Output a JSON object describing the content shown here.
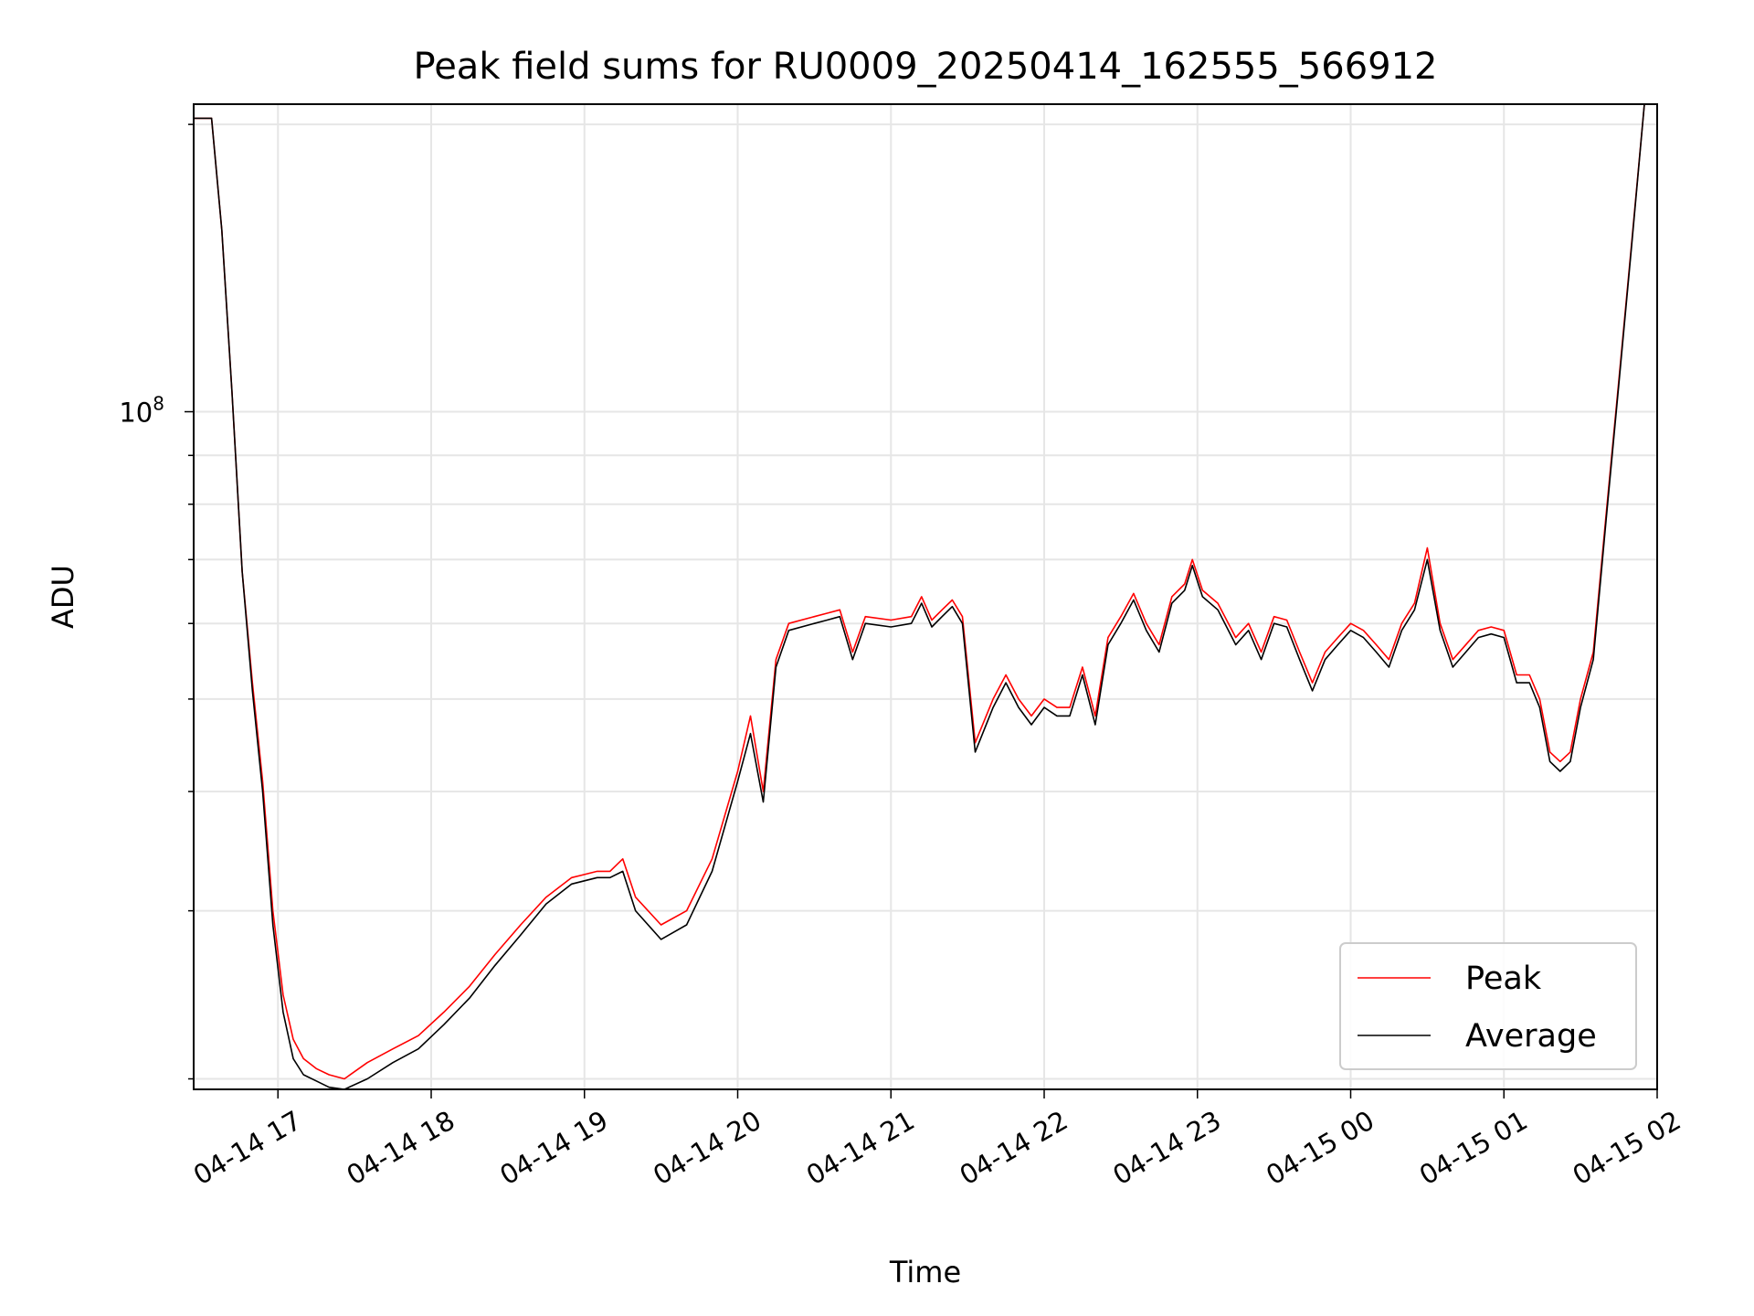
{
  "chart_data": {
    "type": "line",
    "title": "Peak field sums for RU0009_20250414_162555_566912",
    "xlabel": "Time",
    "ylabel": "ADU",
    "y_scale": "log",
    "ylim": [
      19500000,
      210000000
    ],
    "y_tick_label": "10^8",
    "y_tick_value": 100000000,
    "y_minor_ticks": [
      20000000,
      30000000,
      40000000,
      50000000,
      60000000,
      70000000,
      80000000,
      90000000,
      200000000
    ],
    "xlim": [
      "2025-04-14 16:27",
      "2025-04-15 02:00"
    ],
    "x_ticks": [
      {
        "t": "2025-04-14 17:00",
        "label": "04-14 17"
      },
      {
        "t": "2025-04-14 18:00",
        "label": "04-14 18"
      },
      {
        "t": "2025-04-14 19:00",
        "label": "04-14 19"
      },
      {
        "t": "2025-04-14 20:00",
        "label": "04-14 20"
      },
      {
        "t": "2025-04-14 21:00",
        "label": "04-14 21"
      },
      {
        "t": "2025-04-14 22:00",
        "label": "04-14 22"
      },
      {
        "t": "2025-04-14 23:00",
        "label": "04-14 23"
      },
      {
        "t": "2025-04-15 00:00",
        "label": "04-15 00"
      },
      {
        "t": "2025-04-15 01:00",
        "label": "04-15 01"
      },
      {
        "t": "2025-04-15 02:00",
        "label": "04-15 02"
      }
    ],
    "grid": true,
    "legend_position": "lower right",
    "series": [
      {
        "name": "Peak",
        "color": "#ff0000",
        "x": [
          "2025-04-14 16:27",
          "2025-04-14 16:34",
          "2025-04-14 16:38",
          "2025-04-14 16:42",
          "2025-04-14 16:46",
          "2025-04-14 16:50",
          "2025-04-14 16:54",
          "2025-04-14 16:58",
          "2025-04-14 17:02",
          "2025-04-14 17:06",
          "2025-04-14 17:10",
          "2025-04-14 17:15",
          "2025-04-14 17:20",
          "2025-04-14 17:26",
          "2025-04-14 17:35",
          "2025-04-14 17:45",
          "2025-04-14 17:55",
          "2025-04-14 18:05",
          "2025-04-14 18:15",
          "2025-04-14 18:25",
          "2025-04-14 18:35",
          "2025-04-14 18:45",
          "2025-04-14 18:55",
          "2025-04-14 19:05",
          "2025-04-14 19:10",
          "2025-04-14 19:15",
          "2025-04-14 19:20",
          "2025-04-14 19:30",
          "2025-04-14 19:40",
          "2025-04-14 19:50",
          "2025-04-14 20:00",
          "2025-04-14 20:05",
          "2025-04-14 20:10",
          "2025-04-14 20:15",
          "2025-04-14 20:20",
          "2025-04-14 20:30",
          "2025-04-14 20:35",
          "2025-04-14 20:40",
          "2025-04-14 20:45",
          "2025-04-14 20:50",
          "2025-04-14 21:00",
          "2025-04-14 21:08",
          "2025-04-14 21:12",
          "2025-04-14 21:16",
          "2025-04-14 21:20",
          "2025-04-14 21:24",
          "2025-04-14 21:28",
          "2025-04-14 21:33",
          "2025-04-14 21:40",
          "2025-04-14 21:45",
          "2025-04-14 21:50",
          "2025-04-14 21:55",
          "2025-04-14 22:00",
          "2025-04-14 22:05",
          "2025-04-14 22:10",
          "2025-04-14 22:15",
          "2025-04-14 22:20",
          "2025-04-14 22:25",
          "2025-04-14 22:30",
          "2025-04-14 22:35",
          "2025-04-14 22:40",
          "2025-04-14 22:45",
          "2025-04-14 22:50",
          "2025-04-14 22:55",
          "2025-04-14 22:58",
          "2025-04-14 23:02",
          "2025-04-14 23:08",
          "2025-04-14 23:15",
          "2025-04-14 23:20",
          "2025-04-14 23:25",
          "2025-04-14 23:30",
          "2025-04-14 23:35",
          "2025-04-14 23:40",
          "2025-04-14 23:45",
          "2025-04-14 23:50",
          "2025-04-14 23:55",
          "2025-04-15 00:00",
          "2025-04-15 00:05",
          "2025-04-15 00:10",
          "2025-04-15 00:15",
          "2025-04-15 00:20",
          "2025-04-15 00:25",
          "2025-04-15 00:30",
          "2025-04-15 00:35",
          "2025-04-15 00:40",
          "2025-04-15 00:50",
          "2025-04-15 00:55",
          "2025-04-15 01:00",
          "2025-04-15 01:05",
          "2025-04-15 01:10",
          "2025-04-15 01:14",
          "2025-04-15 01:18",
          "2025-04-15 01:22",
          "2025-04-15 01:26",
          "2025-04-15 01:30",
          "2025-04-15 01:35",
          "2025-04-15 01:40",
          "2025-04-15 01:45",
          "2025-04-15 01:50",
          "2025-04-15 01:55"
        ],
        "y": [
          203000000,
          203000000,
          155000000,
          105000000,
          68000000,
          52000000,
          41000000,
          30000000,
          24500000,
          22000000,
          21000000,
          20500000,
          20200000,
          20000000,
          20800000,
          21500000,
          22200000,
          23500000,
          25000000,
          27000000,
          29000000,
          31000000,
          32500000,
          33000000,
          33000000,
          34000000,
          31000000,
          29000000,
          30000000,
          34000000,
          42000000,
          48000000,
          40000000,
          55000000,
          60000000,
          61000000,
          61500000,
          62000000,
          56000000,
          61000000,
          60500000,
          61000000,
          64000000,
          60500000,
          62000000,
          63500000,
          61000000,
          45000000,
          50000000,
          53000000,
          50000000,
          48000000,
          50000000,
          49000000,
          49000000,
          54000000,
          48000000,
          58000000,
          61000000,
          64500000,
          60000000,
          57000000,
          64000000,
          66000000,
          70000000,
          65000000,
          63000000,
          58000000,
          60000000,
          56000000,
          61000000,
          60500000,
          56000000,
          52000000,
          56000000,
          58000000,
          60000000,
          59000000,
          57000000,
          55000000,
          60000000,
          63000000,
          72000000,
          60000000,
          55000000,
          59000000,
          59500000,
          59000000,
          53000000,
          53000000,
          50000000,
          44000000,
          43000000,
          44000000,
          50000000,
          56000000,
          78000000,
          108000000,
          150000000,
          210000000
        ]
      },
      {
        "name": "Average",
        "color": "#000000",
        "x": [
          "2025-04-14 16:27",
          "2025-04-14 16:34",
          "2025-04-14 16:38",
          "2025-04-14 16:42",
          "2025-04-14 16:46",
          "2025-04-14 16:50",
          "2025-04-14 16:54",
          "2025-04-14 16:58",
          "2025-04-14 17:02",
          "2025-04-14 17:06",
          "2025-04-14 17:10",
          "2025-04-14 17:15",
          "2025-04-14 17:20",
          "2025-04-14 17:26",
          "2025-04-14 17:35",
          "2025-04-14 17:45",
          "2025-04-14 17:55",
          "2025-04-14 18:05",
          "2025-04-14 18:15",
          "2025-04-14 18:25",
          "2025-04-14 18:35",
          "2025-04-14 18:45",
          "2025-04-14 18:55",
          "2025-04-14 19:05",
          "2025-04-14 19:10",
          "2025-04-14 19:15",
          "2025-04-14 19:20",
          "2025-04-14 19:30",
          "2025-04-14 19:40",
          "2025-04-14 19:50",
          "2025-04-14 20:00",
          "2025-04-14 20:05",
          "2025-04-14 20:10",
          "2025-04-14 20:15",
          "2025-04-14 20:20",
          "2025-04-14 20:30",
          "2025-04-14 20:35",
          "2025-04-14 20:40",
          "2025-04-14 20:45",
          "2025-04-14 20:50",
          "2025-04-14 21:00",
          "2025-04-14 21:08",
          "2025-04-14 21:12",
          "2025-04-14 21:16",
          "2025-04-14 21:20",
          "2025-04-14 21:24",
          "2025-04-14 21:28",
          "2025-04-14 21:33",
          "2025-04-14 21:40",
          "2025-04-14 21:45",
          "2025-04-14 21:50",
          "2025-04-14 21:55",
          "2025-04-14 22:00",
          "2025-04-14 22:05",
          "2025-04-14 22:10",
          "2025-04-14 22:15",
          "2025-04-14 22:20",
          "2025-04-14 22:25",
          "2025-04-14 22:30",
          "2025-04-14 22:35",
          "2025-04-14 22:40",
          "2025-04-14 22:45",
          "2025-04-14 22:50",
          "2025-04-14 22:55",
          "2025-04-14 22:58",
          "2025-04-14 23:02",
          "2025-04-14 23:08",
          "2025-04-14 23:15",
          "2025-04-14 23:20",
          "2025-04-14 23:25",
          "2025-04-14 23:30",
          "2025-04-14 23:35",
          "2025-04-14 23:40",
          "2025-04-14 23:45",
          "2025-04-14 23:50",
          "2025-04-14 23:55",
          "2025-04-15 00:00",
          "2025-04-15 00:05",
          "2025-04-15 00:10",
          "2025-04-15 00:15",
          "2025-04-15 00:20",
          "2025-04-15 00:25",
          "2025-04-15 00:30",
          "2025-04-15 00:35",
          "2025-04-15 00:40",
          "2025-04-15 00:50",
          "2025-04-15 00:55",
          "2025-04-15 01:00",
          "2025-04-15 01:05",
          "2025-04-15 01:10",
          "2025-04-15 01:14",
          "2025-04-15 01:18",
          "2025-04-15 01:22",
          "2025-04-15 01:26",
          "2025-04-15 01:30",
          "2025-04-15 01:35",
          "2025-04-15 01:40",
          "2025-04-15 01:45",
          "2025-04-15 01:50",
          "2025-04-15 01:55"
        ],
        "y": [
          203000000,
          203000000,
          155000000,
          105000000,
          68000000,
          51000000,
          40000000,
          29000000,
          23500000,
          21000000,
          20200000,
          19900000,
          19600000,
          19500000,
          20000000,
          20800000,
          21500000,
          22800000,
          24300000,
          26300000,
          28300000,
          30500000,
          32000000,
          32500000,
          32500000,
          33000000,
          30000000,
          28000000,
          29000000,
          33000000,
          41000000,
          46000000,
          39000000,
          54000000,
          59000000,
          60000000,
          60500000,
          61000000,
          55000000,
          60000000,
          59500000,
          60000000,
          63000000,
          59500000,
          61000000,
          62500000,
          60000000,
          44000000,
          49000000,
          52000000,
          49000000,
          47000000,
          49000000,
          48000000,
          48000000,
          53000000,
          47000000,
          57000000,
          60000000,
          63500000,
          59000000,
          56000000,
          63000000,
          65000000,
          69000000,
          64000000,
          62000000,
          57000000,
          59000000,
          55000000,
          60000000,
          59500000,
          55000000,
          51000000,
          55000000,
          57000000,
          59000000,
          58000000,
          56000000,
          54000000,
          59000000,
          62000000,
          70000000,
          59000000,
          54000000,
          58000000,
          58500000,
          58000000,
          52000000,
          52000000,
          49000000,
          43000000,
          42000000,
          43000000,
          49000000,
          55000000,
          77000000,
          107000000,
          149000000,
          210000000
        ]
      }
    ]
  }
}
